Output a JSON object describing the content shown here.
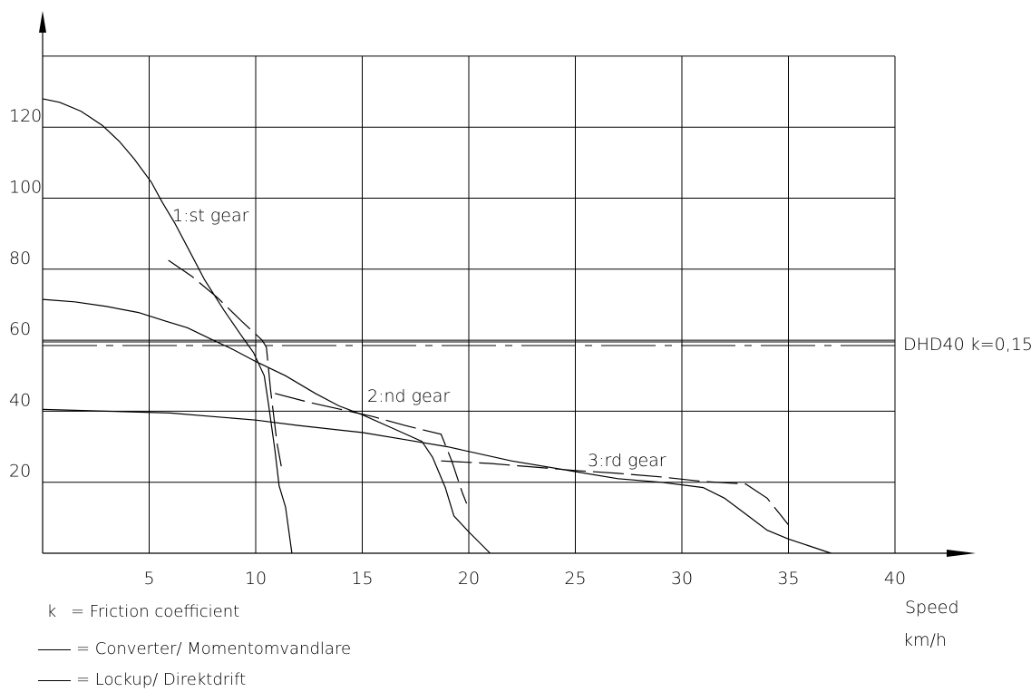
{
  "chart_data": {
    "type": "line",
    "title": "",
    "xlabel": [
      "Speed",
      "km/h"
    ],
    "ylabel": "",
    "xlim": [
      0,
      40
    ],
    "ylim": [
      0,
      140
    ],
    "x_ticks": [
      "5",
      "10",
      "15",
      "20",
      "25",
      "30",
      "35",
      "40"
    ],
    "y_ticks": [
      "20",
      "40",
      "60",
      "80",
      "100",
      "120"
    ],
    "grid": true,
    "series": [
      {
        "name": "Converter/ Momentomvandlare",
        "curve": "1:st gear",
        "points": [
          [
            0,
            128
          ],
          [
            0.8,
            127
          ],
          [
            1.8,
            124.5
          ],
          [
            2.8,
            120.5
          ],
          [
            3.6,
            116
          ],
          [
            4.3,
            111
          ],
          [
            5.1,
            104.5
          ],
          [
            5.6,
            99
          ],
          [
            6.2,
            93
          ],
          [
            6.9,
            85
          ],
          [
            7.6,
            77
          ],
          [
            8.5,
            68.5
          ],
          [
            9.3,
            61.5
          ],
          [
            9.9,
            56.5
          ],
          [
            10.4,
            50
          ],
          [
            10.6,
            42
          ],
          [
            10.9,
            29
          ],
          [
            11.1,
            19
          ],
          [
            11.4,
            13
          ],
          [
            11.7,
            0
          ]
        ]
      },
      {
        "name": "Lockup/ Direktdrift",
        "curve": "1:st gear",
        "points": [
          [
            5.9,
            82.5
          ],
          [
            7.0,
            78
          ],
          [
            8.2,
            72
          ],
          [
            9.4,
            65
          ],
          [
            10.3,
            60
          ],
          [
            10.5,
            58
          ],
          [
            10.7,
            46
          ],
          [
            11.0,
            31
          ],
          [
            11.2,
            24.5
          ]
        ]
      },
      {
        "name": "Converter/ Momentomvandlare",
        "curve": "2:nd gear",
        "points": [
          [
            0,
            71.5
          ],
          [
            1.5,
            70.8
          ],
          [
            3,
            69.5
          ],
          [
            4.5,
            67.8
          ],
          [
            5.7,
            65.5
          ],
          [
            6.8,
            63.5
          ],
          [
            7.9,
            60.3
          ],
          [
            8.9,
            57.5
          ],
          [
            10,
            54
          ],
          [
            11.4,
            50
          ],
          [
            12.8,
            45
          ],
          [
            13.9,
            41.5
          ],
          [
            15,
            39
          ],
          [
            16.5,
            35
          ],
          [
            17.8,
            31.5
          ],
          [
            18.3,
            27
          ],
          [
            18.9,
            18.5
          ],
          [
            19.3,
            10.5
          ],
          [
            20.0,
            6
          ],
          [
            21.0,
            0
          ]
        ]
      },
      {
        "name": "Lockup/ Direktdrift",
        "curve": "2:nd gear",
        "points": [
          [
            10.9,
            45
          ],
          [
            12.5,
            42.5
          ],
          [
            14,
            40.5
          ],
          [
            15.5,
            38.5
          ],
          [
            17,
            36
          ],
          [
            18.7,
            33.5
          ],
          [
            19.2,
            26
          ],
          [
            19.7,
            17
          ],
          [
            19.9,
            14
          ]
        ]
      },
      {
        "name": "Converter/ Momentomvandlare",
        "curve": "3:rd gear",
        "points": [
          [
            0,
            40.5
          ],
          [
            3,
            40
          ],
          [
            6,
            39.5
          ],
          [
            8,
            38.5
          ],
          [
            10,
            37.5
          ],
          [
            12,
            36
          ],
          [
            15,
            34
          ],
          [
            17,
            32
          ],
          [
            19,
            30
          ],
          [
            22,
            26
          ],
          [
            25,
            23
          ],
          [
            27,
            21
          ],
          [
            29,
            20
          ],
          [
            31,
            18.5
          ],
          [
            32,
            15.5
          ],
          [
            33,
            11
          ],
          [
            34,
            6.5
          ],
          [
            35,
            4
          ],
          [
            37,
            0
          ]
        ]
      },
      {
        "name": "Lockup/ Direktdrift",
        "curve": "3:rd gear",
        "points": [
          [
            18.7,
            26
          ],
          [
            21,
            25.3
          ],
          [
            23,
            24.3
          ],
          [
            25,
            23.3
          ],
          [
            27,
            22.5
          ],
          [
            29,
            21.5
          ],
          [
            31,
            20.2
          ],
          [
            33,
            19.5
          ],
          [
            34,
            15.5
          ],
          [
            34.6,
            11
          ],
          [
            35,
            8
          ]
        ]
      }
    ],
    "reference_line": {
      "label": "DHD40 k=0,15",
      "y": 59,
      "style": "dash-dot-double"
    },
    "annotations": [
      "1:st gear",
      "2:nd gear",
      "3:rd gear"
    ]
  },
  "legend": {
    "k_symbol": "k",
    "k_text": "= Friction coefficient",
    "converter_text": "= Converter/ Momentomvandlare",
    "lockup_text": "= Lockup/ Direktdrift"
  }
}
